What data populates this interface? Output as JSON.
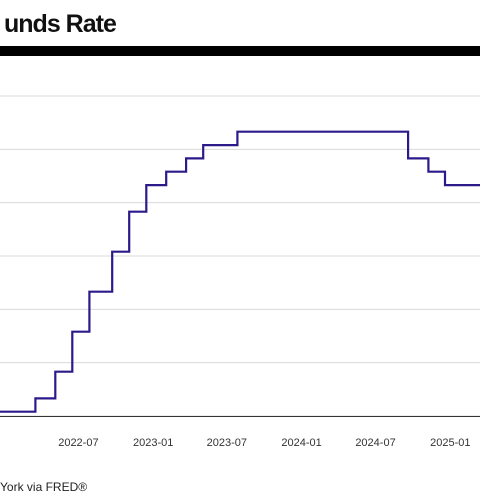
{
  "chart_data": {
    "type": "line",
    "title": "unds Rate",
    "source": "York via FRED®",
    "xlabel": "",
    "ylabel": "",
    "x_ticks": [
      "2022-07",
      "2023-01",
      "2023-07",
      "2024-01",
      "2024-07",
      "2025-01"
    ],
    "xlim": [
      "2021-12-20",
      "2025-03-15"
    ],
    "ylim": [
      0,
      6
    ],
    "y_gridlines": [
      0,
      1,
      2,
      3,
      4,
      5,
      6
    ],
    "grid": true,
    "legend": "none",
    "series": [
      {
        "color": "#2b1a8a",
        "style": "step",
        "x": [
          "2021-12-20",
          "2022-03-17",
          "2022-05-05",
          "2022-06-16",
          "2022-07-28",
          "2022-09-22",
          "2022-11-03",
          "2022-12-15",
          "2023-02-02",
          "2023-03-23",
          "2023-05-04",
          "2023-07-27",
          "2024-09-19",
          "2024-11-08",
          "2024-12-19",
          "2025-03-15"
        ],
        "y": [
          0.08,
          0.33,
          0.83,
          1.58,
          2.33,
          3.08,
          3.83,
          4.33,
          4.58,
          4.83,
          5.08,
          5.33,
          4.83,
          4.58,
          4.33,
          4.33
        ]
      }
    ]
  }
}
